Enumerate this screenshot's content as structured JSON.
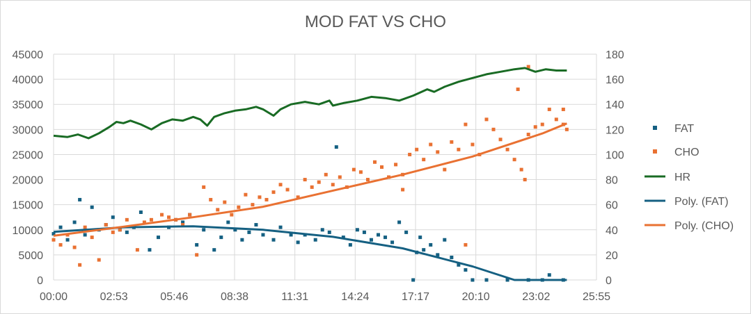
{
  "chart_data": {
    "type": "scatter",
    "title": "MOD FAT VS CHO",
    "x_tick_labels": [
      "00:00",
      "02:53",
      "05:46",
      "08:38",
      "11:31",
      "14:24",
      "17:17",
      "20:10",
      "23:02",
      "25:55"
    ],
    "x_range_minutes": [
      0,
      1555
    ],
    "y_left": {
      "range": [
        0,
        45000
      ],
      "ticks": [
        "0",
        "5000",
        "10000",
        "15000",
        "20000",
        "25000",
        "30000",
        "35000",
        "40000",
        "45000"
      ]
    },
    "y_right": {
      "range": [
        0,
        180
      ],
      "ticks": [
        "0",
        "20",
        "40",
        "60",
        "80",
        "100",
        "120",
        "140",
        "160",
        "180"
      ]
    },
    "legend_position": "right",
    "colors": {
      "fat": "#156082",
      "cho": "#e97132",
      "hr": "#196b24",
      "grid": "#d9d9d9",
      "text": "#595959"
    },
    "series": [
      {
        "name": "FAT",
        "kind": "markers",
        "axis": "left",
        "points": [
          [
            0,
            9200
          ],
          [
            20,
            10500
          ],
          [
            40,
            8000
          ],
          [
            60,
            11500
          ],
          [
            75,
            16000
          ],
          [
            90,
            9000
          ],
          [
            110,
            14500
          ],
          [
            130,
            10000
          ],
          [
            150,
            11000
          ],
          [
            170,
            12500
          ],
          [
            190,
            10000
          ],
          [
            210,
            9500
          ],
          [
            230,
            10500
          ],
          [
            250,
            13500
          ],
          [
            275,
            6000
          ],
          [
            300,
            8500
          ],
          [
            330,
            10500
          ],
          [
            350,
            12000
          ],
          [
            370,
            11500
          ],
          [
            390,
            13000
          ],
          [
            410,
            7000
          ],
          [
            430,
            10000
          ],
          [
            460,
            6000
          ],
          [
            480,
            8500
          ],
          [
            500,
            11500
          ],
          [
            520,
            10000
          ],
          [
            540,
            8000
          ],
          [
            560,
            9500
          ],
          [
            580,
            11000
          ],
          [
            600,
            9000
          ],
          [
            630,
            8000
          ],
          [
            650,
            10500
          ],
          [
            680,
            9000
          ],
          [
            700,
            7500
          ],
          [
            720,
            9000
          ],
          [
            750,
            8000
          ],
          [
            770,
            10000
          ],
          [
            790,
            9500
          ],
          [
            810,
            26500
          ],
          [
            830,
            8500
          ],
          [
            850,
            7000
          ],
          [
            870,
            10000
          ],
          [
            890,
            9500
          ],
          [
            910,
            8000
          ],
          [
            930,
            9000
          ],
          [
            950,
            8500
          ],
          [
            970,
            7500
          ],
          [
            990,
            11500
          ],
          [
            1010,
            9500
          ],
          [
            1030,
            0
          ],
          [
            1040,
            5500
          ],
          [
            1050,
            8500
          ],
          [
            1060,
            6000
          ],
          [
            1080,
            7000
          ],
          [
            1100,
            5000
          ],
          [
            1120,
            8000
          ],
          [
            1140,
            4500
          ],
          [
            1160,
            3000
          ],
          [
            1180,
            2000
          ],
          [
            1200,
            0
          ],
          [
            1240,
            0
          ],
          [
            1300,
            0
          ],
          [
            1360,
            0
          ],
          [
            1400,
            0
          ],
          [
            1420,
            1000
          ],
          [
            1460,
            0
          ]
        ]
      },
      {
        "name": "CHO",
        "kind": "markers",
        "axis": "left",
        "points": [
          [
            0,
            8000
          ],
          [
            20,
            7000
          ],
          [
            40,
            9000
          ],
          [
            60,
            6500
          ],
          [
            75,
            3000
          ],
          [
            90,
            10500
          ],
          [
            110,
            8500
          ],
          [
            130,
            4000
          ],
          [
            150,
            11000
          ],
          [
            170,
            9500
          ],
          [
            190,
            10000
          ],
          [
            210,
            12000
          ],
          [
            240,
            6000
          ],
          [
            260,
            11500
          ],
          [
            280,
            12000
          ],
          [
            310,
            13000
          ],
          [
            330,
            12500
          ],
          [
            350,
            12000
          ],
          [
            370,
            11000
          ],
          [
            390,
            13000
          ],
          [
            410,
            5000
          ],
          [
            430,
            18500
          ],
          [
            450,
            16000
          ],
          [
            470,
            14000
          ],
          [
            490,
            15500
          ],
          [
            510,
            13000
          ],
          [
            530,
            14500
          ],
          [
            550,
            17000
          ],
          [
            570,
            15000
          ],
          [
            590,
            16500
          ],
          [
            610,
            16000
          ],
          [
            630,
            17500
          ],
          [
            650,
            19000
          ],
          [
            670,
            18000
          ],
          [
            700,
            16500
          ],
          [
            720,
            20000
          ],
          [
            740,
            18500
          ],
          [
            760,
            19500
          ],
          [
            780,
            21000
          ],
          [
            800,
            19000
          ],
          [
            820,
            20500
          ],
          [
            840,
            18500
          ],
          [
            860,
            22000
          ],
          [
            880,
            21500
          ],
          [
            900,
            20000
          ],
          [
            920,
            23500
          ],
          [
            940,
            22500
          ],
          [
            960,
            20500
          ],
          [
            980,
            23000
          ],
          [
            1000,
            21000
          ],
          [
            1020,
            25000
          ],
          [
            1040,
            26000
          ],
          [
            1060,
            24000
          ],
          [
            1080,
            27000
          ],
          [
            1100,
            25500
          ],
          [
            1120,
            22000
          ],
          [
            1140,
            27500
          ],
          [
            1160,
            26000
          ],
          [
            1180,
            31000
          ],
          [
            1200,
            27000
          ],
          [
            1220,
            25000
          ],
          [
            1240,
            32000
          ],
          [
            1260,
            30000
          ],
          [
            1280,
            28000
          ],
          [
            1300,
            26000
          ],
          [
            1320,
            24000
          ],
          [
            1340,
            22000
          ],
          [
            1360,
            29000
          ],
          [
            1380,
            30500
          ],
          [
            1400,
            31000
          ],
          [
            1420,
            34000
          ],
          [
            1440,
            32000
          ],
          [
            1460,
            31000
          ],
          [
            1330,
            38000
          ],
          [
            1360,
            42500
          ],
          [
            1000,
            18000
          ],
          [
            1180,
            7000
          ],
          [
            1350,
            20000
          ],
          [
            1460,
            34000
          ],
          [
            1470,
            30000
          ]
        ]
      },
      {
        "name": "HR",
        "kind": "line",
        "axis": "right",
        "points": [
          [
            0,
            115
          ],
          [
            40,
            114
          ],
          [
            70,
            116
          ],
          [
            100,
            113
          ],
          [
            130,
            117
          ],
          [
            160,
            122
          ],
          [
            180,
            126
          ],
          [
            200,
            125
          ],
          [
            220,
            127
          ],
          [
            250,
            124
          ],
          [
            280,
            120
          ],
          [
            310,
            125
          ],
          [
            340,
            128
          ],
          [
            370,
            127
          ],
          [
            400,
            130
          ],
          [
            420,
            128
          ],
          [
            440,
            123
          ],
          [
            460,
            130
          ],
          [
            490,
            133
          ],
          [
            520,
            135
          ],
          [
            550,
            136
          ],
          [
            580,
            138
          ],
          [
            600,
            136
          ],
          [
            630,
            131
          ],
          [
            650,
            136
          ],
          [
            680,
            140
          ],
          [
            720,
            142
          ],
          [
            760,
            140
          ],
          [
            790,
            143
          ],
          [
            800,
            139
          ],
          [
            830,
            141
          ],
          [
            870,
            143
          ],
          [
            910,
            146
          ],
          [
            950,
            145
          ],
          [
            990,
            143
          ],
          [
            1030,
            147
          ],
          [
            1070,
            152
          ],
          [
            1090,
            150
          ],
          [
            1120,
            154
          ],
          [
            1160,
            158
          ],
          [
            1200,
            161
          ],
          [
            1240,
            164
          ],
          [
            1280,
            166
          ],
          [
            1320,
            168
          ],
          [
            1350,
            169
          ],
          [
            1380,
            166
          ],
          [
            1410,
            168
          ],
          [
            1440,
            167
          ],
          [
            1470,
            167
          ]
        ]
      },
      {
        "name": "Poly. (FAT)",
        "kind": "trend",
        "axis": "left",
        "points": [
          [
            0,
            9600
          ],
          [
            200,
            10500
          ],
          [
            400,
            10700
          ],
          [
            600,
            10000
          ],
          [
            800,
            8600
          ],
          [
            1000,
            6300
          ],
          [
            1200,
            2700
          ],
          [
            1320,
            0
          ],
          [
            1470,
            0
          ]
        ]
      },
      {
        "name": "Poly. (CHO)",
        "kind": "trend",
        "axis": "left",
        "points": [
          [
            0,
            8800
          ],
          [
            200,
            10600
          ],
          [
            400,
            12500
          ],
          [
            600,
            14600
          ],
          [
            800,
            17800
          ],
          [
            1000,
            21000
          ],
          [
            1200,
            24600
          ],
          [
            1400,
            29200
          ],
          [
            1470,
            31200
          ]
        ]
      }
    ]
  }
}
